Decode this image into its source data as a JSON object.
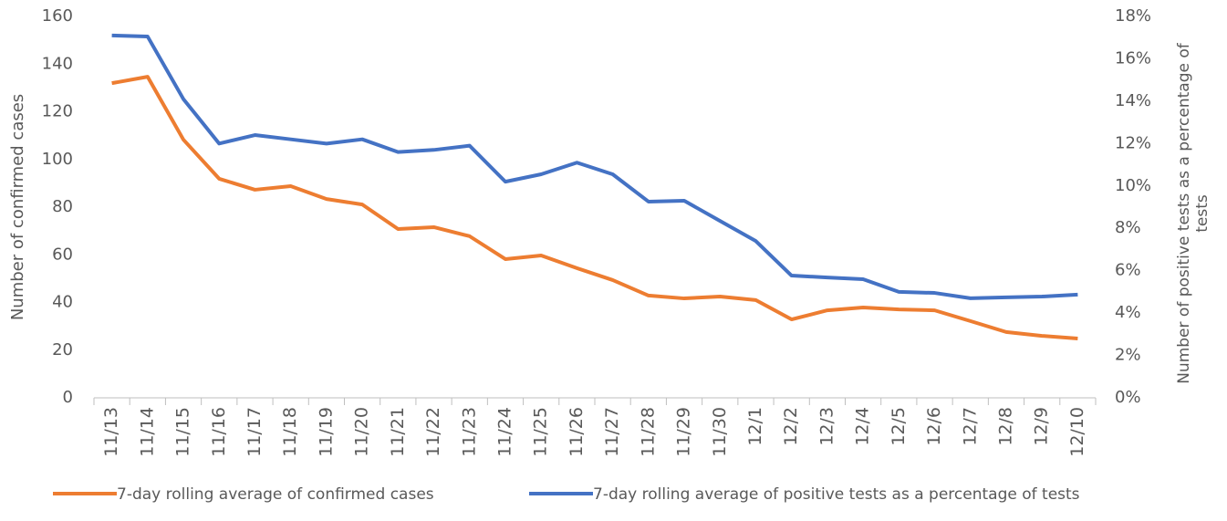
{
  "chart_data": {
    "type": "line",
    "categories": [
      "11/13",
      "11/14",
      "11/15",
      "11/16",
      "11/17",
      "11/18",
      "11/19",
      "11/20",
      "11/21",
      "11/22",
      "11/23",
      "11/24",
      "11/25",
      "11/26",
      "11/27",
      "11/28",
      "11/29",
      "11/30",
      "12/1",
      "12/2",
      "12/3",
      "12/4",
      "12/5",
      "12/6",
      "12/7",
      "12/8",
      "12/9",
      "12/10"
    ],
    "series": [
      {
        "name": "7-day rolling average of confirmed cases",
        "color": "#ed7d31",
        "values": [
          132,
          134.7,
          108.3,
          91.9,
          87.3,
          88.8,
          83.4,
          81.1,
          70.8,
          71.6,
          67.8,
          58.2,
          59.7,
          54.4,
          49.4,
          42.9,
          41.7,
          42.5,
          41,
          32.9,
          36.7,
          37.9,
          37.1,
          36.7,
          32.2,
          27.6,
          26,
          24.9
        ]
      },
      {
        "name": "7-day rolling average of positive tests as a percentage of tests",
        "color": "#4472c4",
        "axis": "y2",
        "values": [
          17.1,
          17.05,
          14.1,
          12.0,
          12.4,
          12.2,
          12.0,
          12.2,
          11.6,
          11.7,
          11.9,
          10.2,
          10.55,
          11.1,
          10.55,
          9.26,
          9.3,
          8.35,
          7.4,
          5.77,
          5.68,
          5.6,
          5.0,
          4.95,
          4.7,
          4.74,
          4.78,
          4.87
        ]
      }
    ],
    "y_label": "Number of confirmed cases",
    "y2_label": "Number of positive tests as a percentage of tests",
    "ylim": [
      0,
      160
    ],
    "yticks": [
      0,
      20,
      40,
      60,
      80,
      100,
      120,
      140,
      160
    ],
    "y2lim": [
      0,
      18
    ],
    "y2ticks": [
      {
        "value": 0,
        "label": "0%"
      },
      {
        "value": 2,
        "label": "2%"
      },
      {
        "value": 4,
        "label": "4%"
      },
      {
        "value": 6,
        "label": "6%"
      },
      {
        "value": 8,
        "label": "8%"
      },
      {
        "value": 10,
        "label": "10%"
      },
      {
        "value": 12,
        "label": "12%"
      },
      {
        "value": 14,
        "label": "14%"
      },
      {
        "value": 16,
        "label": "16%"
      },
      {
        "value": 18,
        "label": "18%"
      }
    ],
    "legend": "bottom"
  }
}
